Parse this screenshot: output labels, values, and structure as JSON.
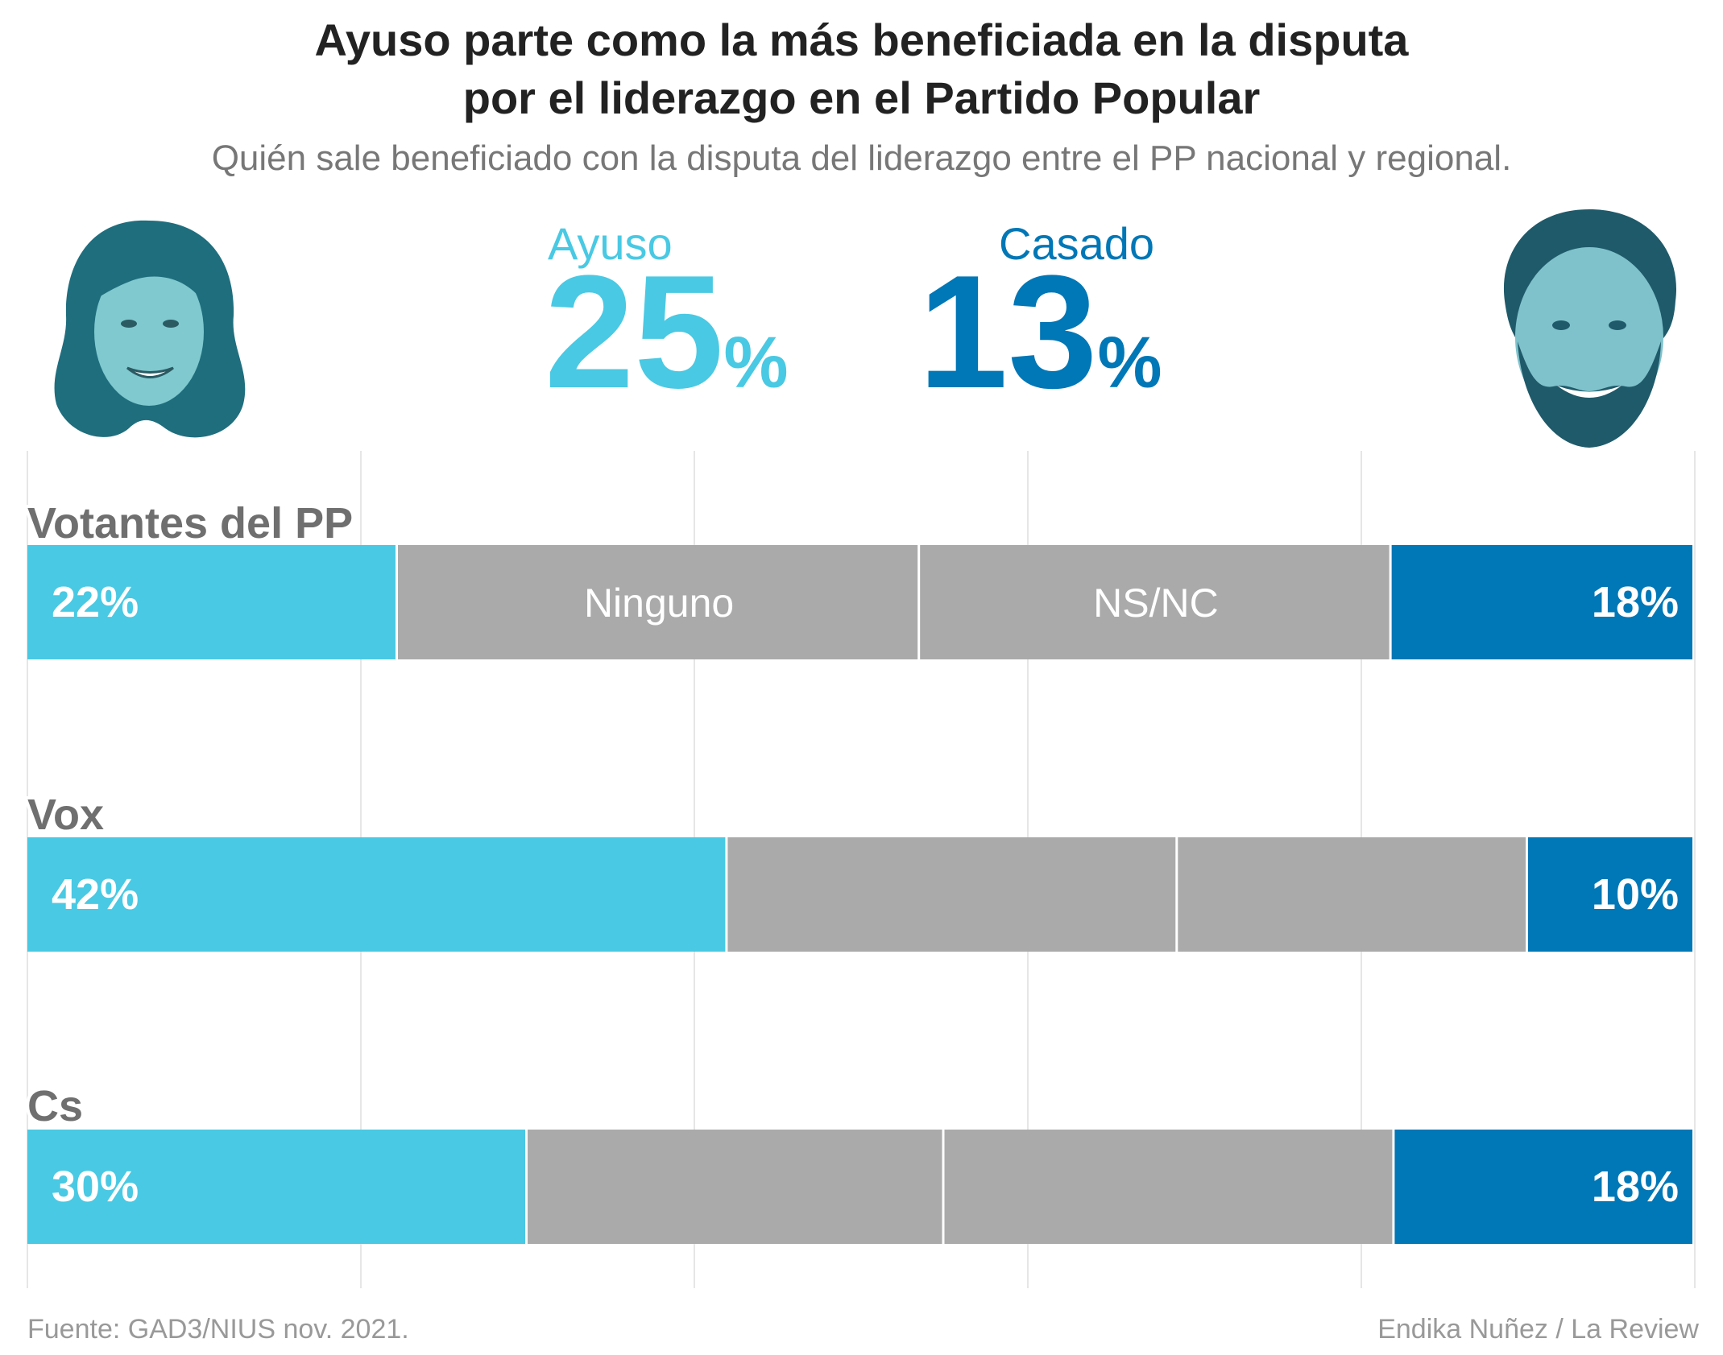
{
  "title_line1": "Ayuso parte como la más beneficiada en la disputa",
  "title_line2": "por el liderazgo en el Partido Popular",
  "subtitle": "Quién sale beneficiado con la disputa del liderazgo entre el PP nacional y regional.",
  "highlights": {
    "ayuso": {
      "name": "Ayuso",
      "value": "25",
      "unit": "%",
      "color": "#49c9e3"
    },
    "casado": {
      "name": "Casado",
      "value": "13",
      "unit": "%",
      "color": "#0077b6"
    }
  },
  "portraits": {
    "left_icon": "ayuso-portrait",
    "right_icon": "casado-portrait",
    "tint": "#1f6e7e"
  },
  "chart_data": {
    "type": "bar",
    "orientation": "horizontal",
    "stacked": true,
    "grid": true,
    "categories": [
      "Votantes del PP",
      "Vox",
      "Cs"
    ],
    "series": [
      {
        "name": "Ayuso",
        "color": "#49c9e3",
        "values": [
          22,
          42,
          30
        ],
        "labels": [
          "22%",
          "42%",
          "30%"
        ]
      },
      {
        "name": "Ninguno",
        "color": "#aaaaaa",
        "values": [
          31,
          27,
          25
        ],
        "labels": [
          "Ninguno",
          "",
          ""
        ]
      },
      {
        "name": "NS/NC",
        "color": "#aaaaaa",
        "values": [
          28,
          21,
          27
        ],
        "labels": [
          "NS/NC",
          "",
          ""
        ]
      },
      {
        "name": "Casado",
        "color": "#0077b6",
        "values": [
          18,
          10,
          18
        ],
        "labels": [
          "18%",
          "10%",
          "18%"
        ]
      }
    ]
  },
  "source": "Fuente: GAD3/NIUS nov. 2021.",
  "credit": "Endika Nuñez / La Review"
}
